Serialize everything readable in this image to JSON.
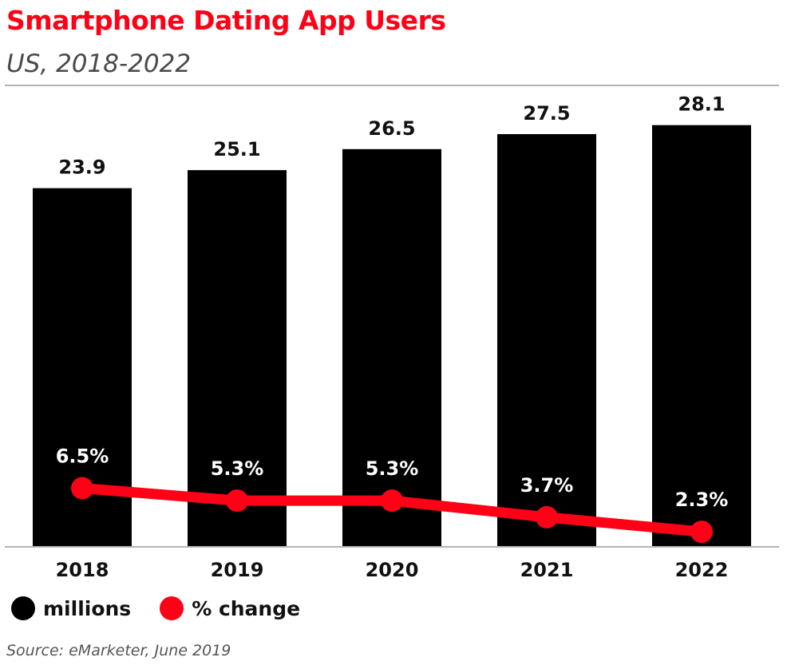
{
  "header": {
    "title": "Smartphone Dating App Users",
    "subtitle": "US, 2018-2022"
  },
  "colors": {
    "title": "#ff0017",
    "bar": "#000000",
    "line": "#ff0017",
    "rule": "#b4b4b4"
  },
  "legend": {
    "bars_label": "millions",
    "line_label": "% change"
  },
  "footer": {
    "source": "Source: eMarketer, June 2019"
  },
  "chart_data": {
    "type": "bar",
    "categories": [
      "2018",
      "2019",
      "2020",
      "2021",
      "2022"
    ],
    "series": [
      {
        "name": "millions",
        "type": "bar",
        "values": [
          23.9,
          25.1,
          26.5,
          27.5,
          28.1
        ],
        "labels": [
          "23.9",
          "25.1",
          "26.5",
          "27.5",
          "28.1"
        ]
      },
      {
        "name": "% change",
        "type": "line",
        "values": [
          6.5,
          5.3,
          5.3,
          3.7,
          2.3
        ],
        "labels": [
          "6.5%",
          "5.3%",
          "5.3%",
          "3.7%",
          "2.3%"
        ]
      }
    ],
    "grid": false,
    "legend_position": "bottom-left"
  }
}
